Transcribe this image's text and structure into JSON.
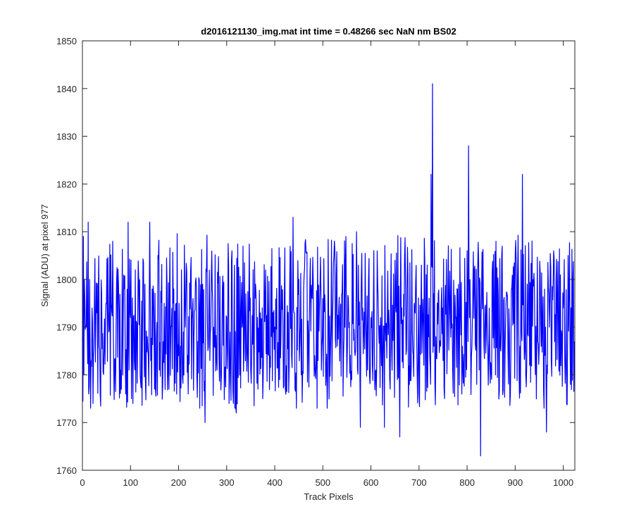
{
  "chart_data": {
    "type": "line",
    "title": "d2016121130_img.mat int time = 0.48266 sec  NaN nm BS02",
    "xlabel": "Track Pixels",
    "ylabel": "Signal (ADU) at pixel 977",
    "xlim": [
      0,
      1024
    ],
    "ylim": [
      1760,
      1850
    ],
    "xticks": [
      0,
      100,
      200,
      300,
      400,
      500,
      600,
      700,
      800,
      900,
      1000
    ],
    "yticks": [
      1760,
      1770,
      1780,
      1790,
      1800,
      1810,
      1820,
      1830,
      1840,
      1850
    ],
    "grid": false,
    "series": [
      {
        "color": "#0000ff",
        "baseline": 1791,
        "noise_range": [
          1773,
          1810
        ],
        "x": [
          0,
          2,
          3,
          5,
          8,
          10,
          12,
          13,
          15,
          18,
          20,
          22,
          25,
          30,
          35,
          40,
          45,
          50,
          55,
          60,
          63,
          65,
          70,
          75,
          80,
          85,
          90,
          95,
          97,
          100,
          102,
          105,
          110,
          115,
          120,
          125,
          130,
          135,
          140,
          142,
          145,
          150,
          155,
          160,
          170,
          180,
          190,
          200,
          210,
          220,
          230,
          240,
          250,
          255,
          260,
          265,
          270,
          280,
          290,
          300,
          305,
          310,
          315,
          320,
          330,
          340,
          350,
          360,
          365,
          370,
          375,
          380,
          390,
          400,
          410,
          420,
          430,
          438,
          440,
          445,
          450,
          455,
          460,
          470,
          480,
          490,
          500,
          510,
          520,
          530,
          540,
          548,
          555,
          560,
          570,
          578,
          580,
          590,
          600,
          610,
          615,
          620,
          625,
          628,
          630,
          640,
          650,
          660,
          670,
          680,
          690,
          700,
          705,
          710,
          715,
          720,
          725,
          728,
          730,
          735,
          740,
          745,
          750,
          760,
          770,
          780,
          790,
          800,
          803,
          805,
          810,
          815,
          820,
          825,
          828,
          830,
          835,
          840,
          850,
          860,
          870,
          880,
          890,
          900,
          910,
          915,
          918,
          920,
          925,
          930,
          940,
          950,
          960,
          963,
          965,
          970,
          975,
          980,
          990,
          1000,
          1005,
          1010,
          1015,
          1020,
          1023
        ],
        "y": [
          1788,
          1809,
          1780,
          1796,
          1790,
          1790,
          1812,
          1776,
          1800,
          1783,
          1794,
          1774,
          1796,
          1793,
          1786,
          1797,
          1786,
          1795,
          1789,
          1795,
          1808,
          1782,
          1790,
          1799,
          1781,
          1794,
          1776,
          1812,
          1781,
          1792,
          1775,
          1774,
          1802,
          1791,
          1780,
          1790,
          1799,
          1788,
          1812,
          1783,
          1798,
          1777,
          1791,
          1781,
          1795,
          1777,
          1798,
          1784,
          1789,
          1776,
          1796,
          1787,
          1799,
          1770,
          1791,
          1783,
          1798,
          1781,
          1787,
          1792,
          1774,
          1804,
          1788,
          1772,
          1793,
          1797,
          1781,
          1799,
          1777,
          1793,
          1775,
          1795,
          1784,
          1790,
          1779,
          1797,
          1782,
          1813,
          1793,
          1773,
          1800,
          1780,
          1798,
          1788,
          1800,
          1783,
          1796,
          1779,
          1791,
          1786,
          1797,
          1809,
          1791,
          1779,
          1810,
          1769,
          1800,
          1787,
          1792,
          1781,
          1796,
          1792,
          1783,
          1769,
          1791,
          1777,
          1804,
          1767,
          1805,
          1778,
          1795,
          1776,
          1803,
          1782,
          1801,
          1788,
          1822,
          1841,
          1797,
          1788,
          1797,
          1786,
          1783,
          1800,
          1781,
          1798,
          1786,
          1806,
          1828,
          1792,
          1786,
          1802,
          1778,
          1781,
          1763,
          1797,
          1786,
          1792,
          1781,
          1808,
          1785,
          1791,
          1776,
          1805,
          1786,
          1822,
          1790,
          1785,
          1799,
          1782,
          1798,
          1786,
          1773,
          1790,
          1768,
          1797,
          1783,
          1806,
          1788,
          1794,
          1783,
          1805,
          1778,
          1800,
          1787
        ]
      }
    ]
  }
}
